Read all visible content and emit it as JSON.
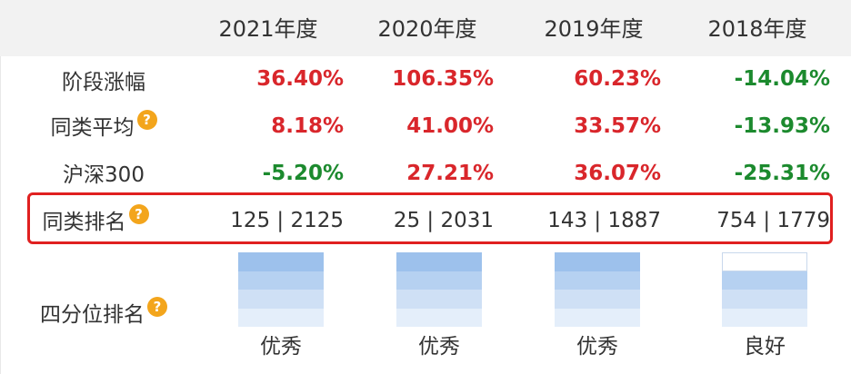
{
  "headers": [
    "2021年度",
    "2020年度",
    "2019年度",
    "2018年度"
  ],
  "rows": [
    {
      "label": "阶段涨幅",
      "help": false,
      "values": [
        "36.40%",
        "106.35%",
        "60.23%",
        "-14.04%"
      ],
      "colors": [
        "red",
        "red",
        "red",
        "green"
      ]
    },
    {
      "label": "同类平均",
      "help": true,
      "values": [
        "8.18%",
        "41.00%",
        "33.57%",
        "-13.93%"
      ],
      "colors": [
        "red",
        "red",
        "red",
        "green"
      ]
    },
    {
      "label": "沪深300",
      "help": false,
      "values": [
        "-5.20%",
        "27.21%",
        "36.07%",
        "-25.31%"
      ],
      "colors": [
        "green",
        "red",
        "red",
        "green"
      ]
    }
  ],
  "rank_row": {
    "label": "同类排名",
    "help": true,
    "values": [
      "125 | 2125",
      "25 | 2031",
      "143 | 1887",
      "754 | 1779"
    ]
  },
  "quartile_row": {
    "label": "四分位排名",
    "help": true,
    "levels": [
      4,
      4,
      4,
      3
    ],
    "ratings": [
      "优秀",
      "优秀",
      "优秀",
      "良好"
    ]
  },
  "help_icon_glyph": "?",
  "colors": {
    "red": "#d9262b",
    "green": "#1c8a2e",
    "highlight": "#e02020",
    "help": "#f3a51c",
    "header_bg": "#f2f2f2"
  }
}
